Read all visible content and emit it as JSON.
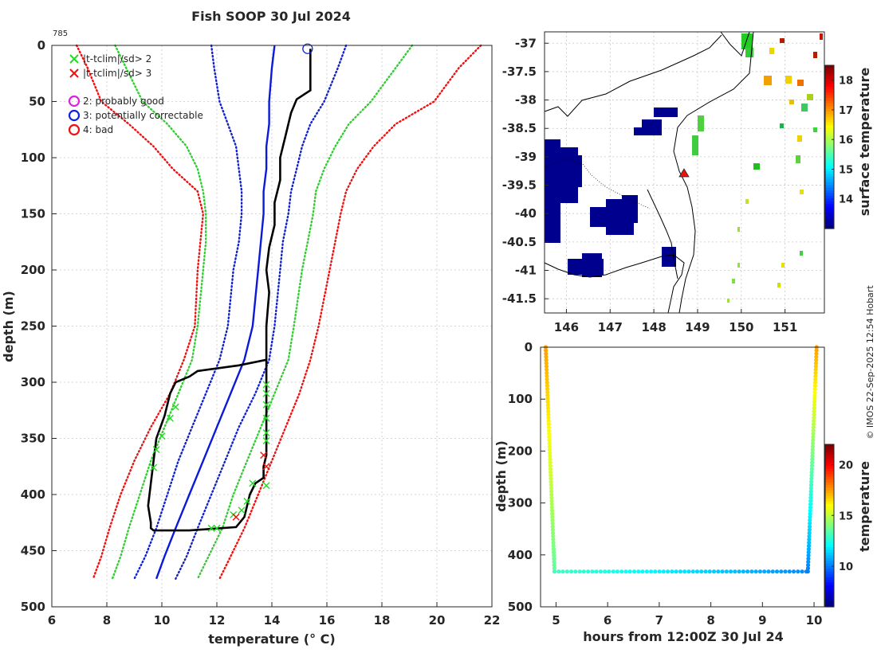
{
  "figure_title": "Fish SOOP 30 Jul 2024",
  "credit": "© IMOS 22-Sep-2025 12:54 Hobart",
  "chart_data": [
    {
      "type": "line",
      "name": "temperature-profile",
      "title": "Fish SOOP 30 Jul 2024",
      "xlabel": "temperature (° C)",
      "ylabel": "depth (m)",
      "xlim": [
        6,
        22
      ],
      "ylim": [
        500,
        0
      ],
      "xticks": [
        6,
        8,
        10,
        12,
        14,
        16,
        18,
        20,
        22
      ],
      "yticks": [
        0,
        50,
        100,
        150,
        200,
        250,
        300,
        350,
        400,
        450,
        500
      ],
      "grid": true,
      "profile_label": "785",
      "legend": [
        {
          "symbol": "×",
          "label": "|t-tclim|/sd> 2",
          "color": "#22dd22"
        },
        {
          "symbol": "×",
          "label": "|t-tclim|/sd> 3",
          "color": "#ee1111"
        },
        {
          "symbol": "○",
          "label": "2: probably good",
          "color": "#dd22dd"
        },
        {
          "symbol": "○",
          "label": "3: potentially correctable",
          "color": "#1122dd"
        },
        {
          "symbol": "○",
          "label": "4: bad",
          "color": "#ee1111"
        }
      ],
      "series": [
        {
          "name": "clim -3sd",
          "style": "dotted",
          "color": "#ee1111",
          "x": [
            6.9,
            7.3,
            7.8,
            8.8,
            9.7,
            10.4,
            11.3,
            11.5,
            11.4,
            11.3,
            11.2,
            10.8,
            10.3,
            9.6,
            9.0,
            8.5,
            8.1,
            7.8,
            7.5
          ],
          "y": [
            0,
            20,
            50,
            70,
            90,
            110,
            130,
            150,
            175,
            200,
            250,
            280,
            310,
            340,
            370,
            400,
            430,
            455,
            475
          ]
        },
        {
          "name": "clim -2sd",
          "style": "dotted",
          "color": "#33cc33",
          "x": [
            8.3,
            8.7,
            9.3,
            10.2,
            10.9,
            11.3,
            11.5,
            11.6,
            11.6,
            11.5,
            11.3,
            11.1,
            10.6,
            10.1,
            9.6,
            9.2,
            8.8,
            8.5,
            8.2
          ],
          "y": [
            0,
            20,
            50,
            70,
            90,
            110,
            130,
            150,
            175,
            200,
            250,
            280,
            310,
            340,
            370,
            400,
            430,
            455,
            475
          ]
        },
        {
          "name": "clim -1sd",
          "style": "dotted",
          "color": "#1122cc",
          "x": [
            11.8,
            11.9,
            12.1,
            12.4,
            12.7,
            12.8,
            12.9,
            12.9,
            12.8,
            12.6,
            12.4,
            12.1,
            11.6,
            11.1,
            10.6,
            10.2,
            9.8,
            9.4,
            9.0
          ],
          "y": [
            0,
            20,
            50,
            70,
            90,
            110,
            130,
            150,
            175,
            200,
            250,
            280,
            310,
            340,
            370,
            400,
            430,
            455,
            475
          ]
        },
        {
          "name": "clim mean",
          "style": "solid",
          "color": "#0a1ad8",
          "x": [
            14.1,
            14.0,
            13.9,
            13.9,
            13.8,
            13.8,
            13.7,
            13.7,
            13.6,
            13.5,
            13.3,
            13.0,
            12.5,
            12.0,
            11.5,
            11.0,
            10.5,
            10.1,
            9.8
          ],
          "y": [
            0,
            20,
            50,
            70,
            90,
            110,
            130,
            150,
            175,
            200,
            250,
            280,
            310,
            340,
            370,
            400,
            430,
            455,
            475
          ]
        },
        {
          "name": "clim +1sd",
          "style": "dotted",
          "color": "#1122cc",
          "x": [
            16.7,
            16.4,
            15.9,
            15.4,
            15.1,
            14.9,
            14.7,
            14.6,
            14.4,
            14.3,
            14.1,
            13.9,
            13.4,
            12.8,
            12.3,
            11.8,
            11.3,
            10.9,
            10.5
          ],
          "y": [
            0,
            20,
            50,
            70,
            90,
            110,
            130,
            150,
            175,
            200,
            250,
            280,
            310,
            340,
            370,
            400,
            430,
            455,
            475
          ]
        },
        {
          "name": "clim +2sd",
          "style": "dotted",
          "color": "#33cc33",
          "x": [
            19.1,
            18.5,
            17.6,
            16.8,
            16.3,
            15.9,
            15.6,
            15.5,
            15.3,
            15.1,
            14.8,
            14.6,
            14.1,
            13.6,
            13.1,
            12.6,
            12.2,
            11.7,
            11.3
          ],
          "y": [
            0,
            20,
            50,
            70,
            90,
            110,
            130,
            150,
            175,
            200,
            250,
            280,
            310,
            340,
            370,
            400,
            430,
            455,
            475
          ]
        },
        {
          "name": "clim +3sd",
          "style": "dotted",
          "color": "#ee1111",
          "x": [
            21.6,
            20.8,
            19.9,
            18.5,
            17.7,
            17.1,
            16.7,
            16.5,
            16.3,
            16.1,
            15.7,
            15.4,
            15.0,
            14.5,
            14.0,
            13.5,
            13.0,
            12.5,
            12.1
          ],
          "y": [
            0,
            20,
            50,
            70,
            90,
            110,
            130,
            150,
            175,
            200,
            250,
            280,
            310,
            340,
            370,
            400,
            430,
            455,
            475
          ]
        },
        {
          "name": "observed profile",
          "style": "solid",
          "color": "#000000",
          "x": [
            15.4,
            15.4,
            15.4,
            15.4,
            15.4,
            14.9,
            14.7,
            14.6,
            14.5,
            14.3,
            14.3,
            14.1,
            14.1,
            13.9,
            13.8,
            13.9,
            13.8,
            13.8,
            13.8,
            13.8,
            13.8,
            12.8,
            11.3,
            11.0,
            10.5,
            10.3,
            10.1,
            9.8,
            9.7,
            9.6,
            9.5,
            9.6,
            9.6,
            9.7,
            11.0,
            12.7,
            13.0,
            13.2,
            13.4,
            13.7,
            13.7,
            13.8,
            13.8,
            13.8,
            13.8,
            13.8,
            13.8,
            13.8,
            13.8
          ],
          "y": [
            3,
            10,
            20,
            30,
            40,
            48,
            60,
            70,
            80,
            100,
            120,
            140,
            160,
            180,
            200,
            220,
            250,
            260,
            270,
            275,
            280,
            285,
            290,
            295,
            300,
            310,
            330,
            350,
            370,
            390,
            410,
            425,
            430,
            432,
            432,
            429,
            420,
            400,
            390,
            385,
            375,
            365,
            350,
            335,
            320,
            310,
            300,
            290,
            280
          ]
        }
      ],
      "flags": {
        "green_x": {
          "x": [
            10.5,
            10.3,
            10.0,
            9.8,
            9.7,
            13.3,
            13.1,
            12.9,
            12.6,
            12.0,
            11.8,
            13.8,
            13.8,
            13.8,
            13.8,
            13.8,
            13.8,
            13.8
          ],
          "y": [
            322,
            332,
            348,
            360,
            376,
            390,
            406,
            414,
            418,
            430,
            430,
            302,
            310,
            320,
            332,
            345,
            352,
            392
          ]
        },
        "red_x": {
          "x": [
            13.7,
            13.8,
            12.7
          ],
          "y": [
            365,
            375,
            420
          ]
        },
        "blue_circle": {
          "x": [
            15.3
          ],
          "y": [
            3
          ]
        }
      }
    },
    {
      "type": "heatmap",
      "name": "sst-map",
      "colorbar_label": "surface temperature",
      "colorbar_range": [
        13,
        18.5
      ],
      "colorbar_ticks": [
        14,
        15,
        16,
        17,
        18
      ],
      "xlim": [
        145.5,
        151.9
      ],
      "ylim": [
        -41.75,
        -36.8
      ],
      "xticks": [
        146,
        147,
        148,
        149,
        150,
        151
      ],
      "yticks": [
        -37,
        -37.5,
        -38,
        -38.5,
        -39,
        -39.5,
        -40,
        -40.5,
        -41,
        -41.5
      ],
      "station_marker": {
        "lon": 148.7,
        "lat": -39.25,
        "color": "#ee1111"
      }
    },
    {
      "type": "scatter",
      "name": "xbt-section",
      "xlabel": "hours from 12:00Z 30 Jul 24",
      "ylabel": "depth (m)",
      "colorbar_label": "temperature",
      "colorbar_range": [
        6,
        22
      ],
      "colorbar_ticks": [
        10,
        15,
        20
      ],
      "xlim": [
        4.7,
        10.2
      ],
      "ylim": [
        500,
        0
      ],
      "xticks": [
        5,
        6,
        7,
        8,
        9,
        10
      ],
      "yticks": [
        0,
        100,
        200,
        300,
        400,
        500
      ],
      "left_drop": {
        "x_top": 4.8,
        "x_bottom": 4.97,
        "top_temp": 17.5,
        "bottom_temp": 13.5
      },
      "bottom_track": {
        "x_start": 4.97,
        "x_end": 9.85,
        "depth": 432,
        "temp_start": 13.0,
        "temp_end": 10.2
      },
      "right_drop": {
        "x_top": 10.05,
        "x_bottom": 9.88,
        "top_temp": 17.5,
        "bottom_temp": 10.0
      }
    }
  ]
}
